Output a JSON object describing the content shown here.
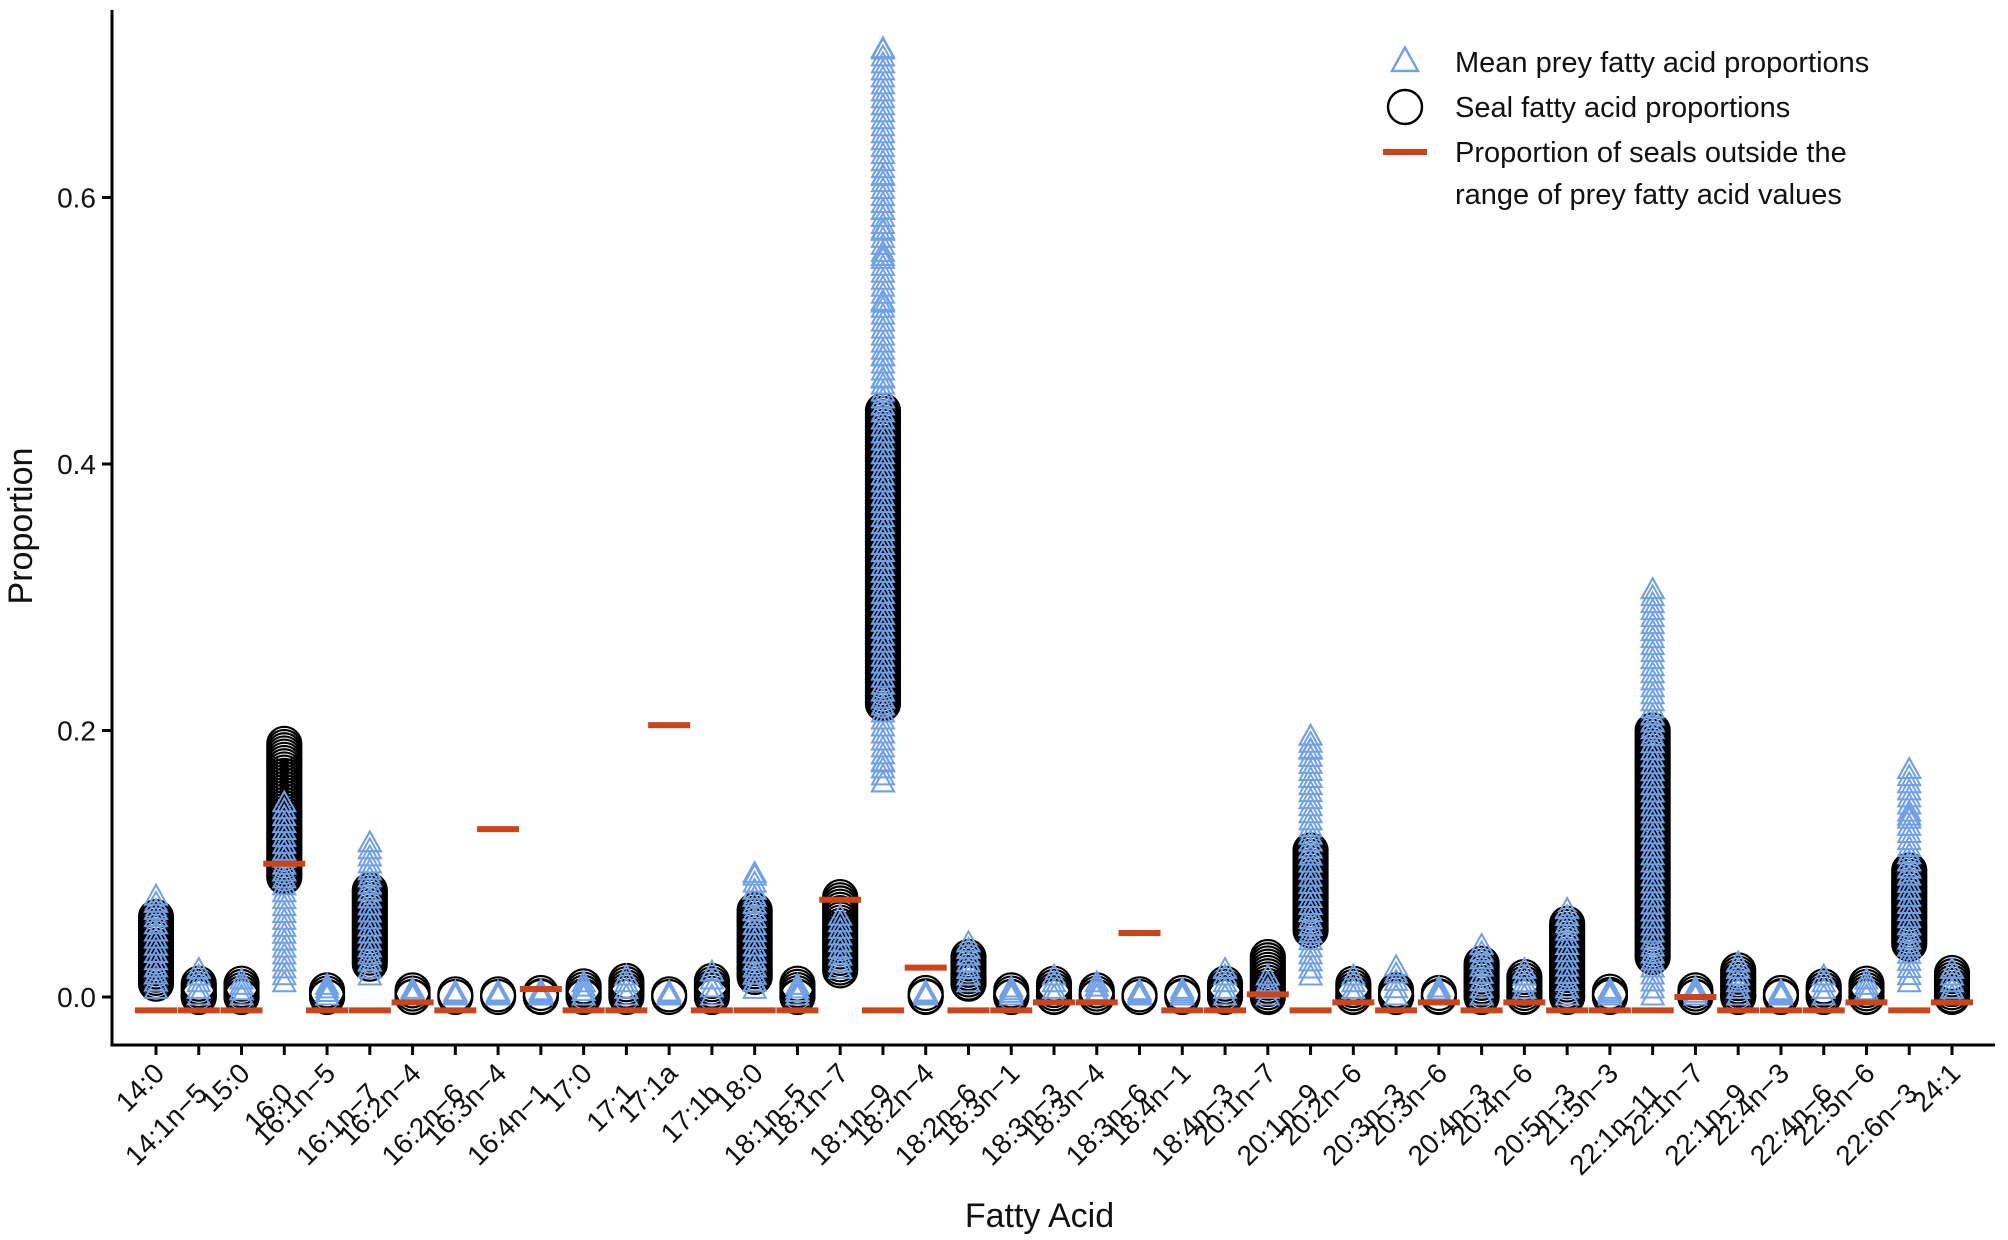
{
  "chart_data": {
    "type": "scatter",
    "xlabel": "Fatty Acid",
    "ylabel": "Proportion",
    "ylim": [
      -0.05,
      0.74
    ],
    "yticks": [
      0.0,
      0.2,
      0.4,
      0.6
    ],
    "ytick_labels": [
      "0.0",
      "0.2",
      "0.4",
      "0.6"
    ],
    "grid": false,
    "legend_position": "top-right",
    "colors": {
      "prey": "#6fa0e8",
      "seal": "#000000",
      "outside": "#cc4419",
      "axis": "#000000"
    },
    "legend": [
      {
        "key": "prey",
        "lines": [
          "Mean prey fatty acid proportions"
        ]
      },
      {
        "key": "seal",
        "lines": [
          "Seal fatty acid proportions"
        ]
      },
      {
        "key": "outside",
        "lines": [
          "Proportion of seals outside the",
          "range of prey fatty acid values"
        ]
      }
    ],
    "categories": [
      "14:0",
      "14:1n−5",
      "15:0",
      "16:0",
      "16:1n−5",
      "16:1n−7",
      "16:2n−4",
      "16:2n−6",
      "16:3n−4",
      "16:4n−1",
      "17:0",
      "17:1",
      "17:1a",
      "17:1b",
      "18:0",
      "18:1n−5",
      "18:1n−7",
      "18:1n−9",
      "18:2n−4",
      "18:2n−6",
      "18:3n−1",
      "18:3n−3",
      "18:3n−4",
      "18:3n−6",
      "18:4n−1",
      "18:4n−3",
      "20:1n−7",
      "20:1n−9",
      "20:2n−6",
      "20:3n−3",
      "20:3n−6",
      "20:4n−3",
      "20:4n−6",
      "20:5n−3",
      "21:5n−3",
      "22:1n−11",
      "22:1n−7",
      "22:1n−9",
      "22:4n−3",
      "22:4n−6",
      "22:5n−6",
      "22:6n−3",
      "24:1"
    ],
    "series": [
      {
        "name": "Seal fatty acid proportions",
        "marker": "circle",
        "ranges": [
          [
            0.01,
            0.06
          ],
          [
            0.0,
            0.01
          ],
          [
            0.0,
            0.01
          ],
          [
            0.09,
            0.19
          ],
          [
            0.0,
            0.005
          ],
          [
            0.025,
            0.08
          ],
          [
            0.0,
            0.005
          ],
          [
            0.0,
            0.002
          ],
          [
            0.0,
            0.002
          ],
          [
            0.0,
            0.003
          ],
          [
            0.0,
            0.008
          ],
          [
            0.0,
            0.012
          ],
          [
            0.0,
            0.002
          ],
          [
            0.0,
            0.012
          ],
          [
            0.015,
            0.065
          ],
          [
            0.0,
            0.01
          ],
          [
            0.02,
            0.075
          ],
          [
            0.22,
            0.44
          ],
          [
            0.0,
            0.003
          ],
          [
            0.01,
            0.03
          ],
          [
            0.0,
            0.005
          ],
          [
            0.0,
            0.01
          ],
          [
            0.0,
            0.005
          ],
          [
            0.0,
            0.002
          ],
          [
            0.0,
            0.003
          ],
          [
            0.0,
            0.01
          ],
          [
            0.0,
            0.03
          ],
          [
            0.05,
            0.11
          ],
          [
            0.0,
            0.01
          ],
          [
            0.0,
            0.005
          ],
          [
            0.0,
            0.003
          ],
          [
            0.0,
            0.025
          ],
          [
            0.0,
            0.015
          ],
          [
            0.0,
            0.055
          ],
          [
            0.0,
            0.004
          ],
          [
            0.03,
            0.2
          ],
          [
            0.0,
            0.005
          ],
          [
            0.0,
            0.02
          ],
          [
            0.0,
            0.003
          ],
          [
            0.0,
            0.008
          ],
          [
            0.0,
            0.01
          ],
          [
            0.04,
            0.095
          ],
          [
            0.0,
            0.018
          ]
        ]
      },
      {
        "name": "Mean prey fatty acid proportions",
        "marker": "triangle",
        "ranges": [
          [
            0.005,
            0.075
          ],
          [
            0.0,
            0.02
          ],
          [
            0.0,
            0.012
          ],
          [
            0.01,
            0.145
          ],
          [
            0.0,
            0.008
          ],
          [
            0.015,
            0.115
          ],
          [
            0.0,
            0.005
          ],
          [
            0.0,
            0.003
          ],
          [
            0.0,
            0.003
          ],
          [
            0.0,
            0.004
          ],
          [
            0.0,
            0.01
          ],
          [
            0.0,
            0.015
          ],
          [
            0.0,
            0.003
          ],
          [
            0.0,
            0.018
          ],
          [
            0.005,
            0.09
          ],
          [
            0.0,
            0.008
          ],
          [
            0.02,
            0.06
          ],
          [
            0.16,
            0.71
          ],
          [
            0.0,
            0.003
          ],
          [
            0.01,
            0.04
          ],
          [
            0.0,
            0.006
          ],
          [
            0.0,
            0.015
          ],
          [
            0.0,
            0.01
          ],
          [
            0.0,
            0.004
          ],
          [
            0.0,
            0.005
          ],
          [
            0.0,
            0.02
          ],
          [
            0.0,
            0.015
          ],
          [
            0.015,
            0.195
          ],
          [
            0.0,
            0.015
          ],
          [
            0.0,
            0.022
          ],
          [
            0.0,
            0.006
          ],
          [
            0.0,
            0.038
          ],
          [
            0.0,
            0.02
          ],
          [
            0.0,
            0.065
          ],
          [
            0.0,
            0.005
          ],
          [
            0.0,
            0.305
          ],
          [
            0.0,
            0.006
          ],
          [
            0.0,
            0.025
          ],
          [
            0.0,
            0.004
          ],
          [
            0.0,
            0.015
          ],
          [
            0.0,
            0.012
          ],
          [
            0.01,
            0.17
          ],
          [
            0.0,
            0.02
          ]
        ],
        "highlights": [
          [
            17,
            0.711
          ],
          [
            17,
            0.615
          ],
          [
            17,
            0.59
          ],
          [
            17,
            0.575
          ],
          [
            17,
            0.555
          ],
          [
            17,
            0.52
          ],
          [
            17,
            0.48
          ],
          [
            17,
            0.463
          ],
          [
            17,
            0.175
          ],
          [
            17,
            0.16
          ],
          [
            35,
            0.305
          ],
          [
            27,
            0.195
          ],
          [
            27,
            0.185
          ],
          [
            41,
            0.17
          ],
          [
            41,
            0.135
          ],
          [
            5,
            0.115
          ],
          [
            14,
            0.092
          ]
        ]
      },
      {
        "name": "Proportion of seals outside the range of prey fatty acid values",
        "marker": "dash",
        "values": [
          -0.01,
          -0.01,
          -0.01,
          0.1,
          -0.01,
          -0.01,
          -0.004,
          -0.01,
          0.126,
          0.006,
          -0.01,
          -0.01,
          0.204,
          -0.01,
          -0.01,
          -0.01,
          0.073,
          -0.01,
          0.022,
          -0.01,
          -0.01,
          -0.004,
          -0.004,
          0.048,
          -0.01,
          -0.01,
          0.002,
          -0.01,
          -0.004,
          -0.01,
          -0.004,
          -0.01,
          -0.004,
          -0.01,
          -0.01,
          -0.01,
          0.0,
          -0.01,
          -0.01,
          -0.01,
          -0.004,
          -0.01,
          -0.004
        ]
      }
    ]
  }
}
